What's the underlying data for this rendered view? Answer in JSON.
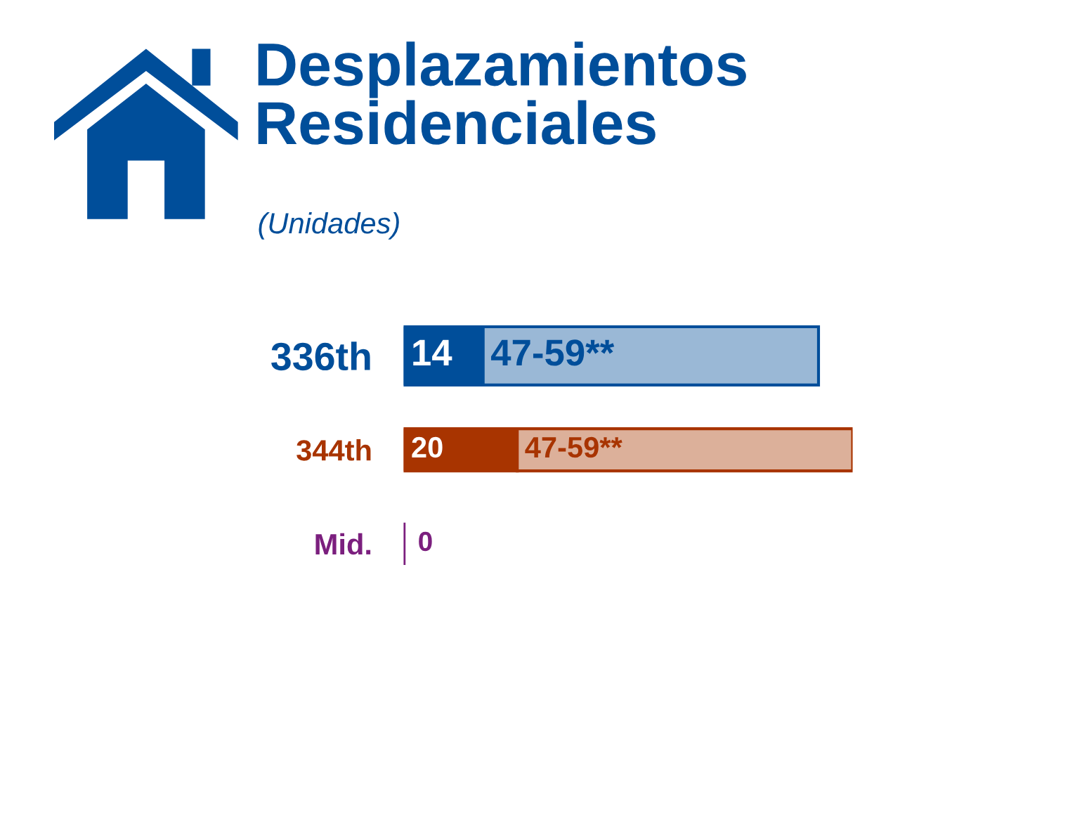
{
  "chart_data": {
    "type": "bar",
    "orientation": "horizontal",
    "stacked": true,
    "title": "Desplazamientos\nResidenciales",
    "subtitle": "(Unidades)",
    "categories": [
      "336th",
      "344th",
      "Mid."
    ],
    "series": [
      {
        "colors": [
          "#004e9a",
          "#a83400",
          "#7b1f7e"
        ],
        "values": [
          14,
          20,
          0
        ],
        "value_labels": [
          "14",
          "20",
          "0"
        ]
      },
      {
        "colors": [
          "#9ab8d6",
          "#dcb09a",
          "#dcb09a"
        ],
        "values": [
          59,
          59,
          null
        ],
        "value_labels": [
          "47-59**",
          "47-59**",
          null
        ]
      }
    ]
  }
}
